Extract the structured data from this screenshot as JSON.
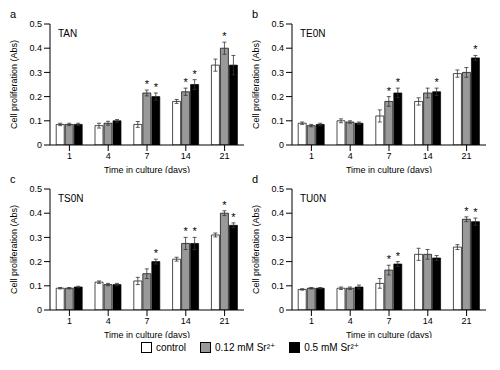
{
  "chart_data": [
    {
      "type": "bar",
      "panel_label": "a",
      "title": "TAN",
      "x_label": "Time in culture (days)",
      "y_label": "Cell proliferation (Abs)",
      "categories": [
        "1",
        "4",
        "7",
        "14",
        "21"
      ],
      "ylim": [
        0,
        0.5
      ],
      "yticks": [
        0,
        0.1,
        0.2,
        0.3,
        0.4,
        0.5
      ],
      "legend": "bottom",
      "series": [
        {
          "name": "control",
          "color": "#ffffff",
          "values": [
            0.085,
            0.08,
            0.085,
            0.18,
            0.33
          ],
          "errors": [
            0.005,
            0.01,
            0.012,
            0.008,
            0.025
          ],
          "significance": [
            null,
            null,
            null,
            null,
            null
          ]
        },
        {
          "name": "0.12 mM Sr²⁺",
          "color": "#999999",
          "values": [
            0.085,
            0.09,
            0.215,
            0.22,
            0.4
          ],
          "errors": [
            0.005,
            0.008,
            0.012,
            0.015,
            0.025
          ],
          "significance": [
            null,
            null,
            "*",
            "*",
            "*"
          ]
        },
        {
          "name": "0.5 mM Sr²⁺",
          "color": "#000000",
          "values": [
            0.085,
            0.1,
            0.2,
            0.25,
            0.33
          ],
          "errors": [
            0.005,
            0.005,
            0.015,
            0.02,
            0.04
          ],
          "significance": [
            null,
            null,
            "*",
            "*",
            null
          ]
        }
      ]
    },
    {
      "type": "bar",
      "panel_label": "b",
      "title": "TE0N",
      "x_label": "Time in culture (days)",
      "y_label": "Cell proliferation (Abs)",
      "categories": [
        "1",
        "4",
        "7",
        "14",
        "21"
      ],
      "ylim": [
        0,
        0.5
      ],
      "yticks": [
        0,
        0.1,
        0.2,
        0.3,
        0.4,
        0.5
      ],
      "legend": "bottom",
      "series": [
        {
          "name": "control",
          "color": "#ffffff",
          "values": [
            0.09,
            0.1,
            0.12,
            0.18,
            0.295
          ],
          "errors": [
            0.005,
            0.008,
            0.025,
            0.015,
            0.015
          ],
          "significance": [
            null,
            null,
            null,
            null,
            null
          ]
        },
        {
          "name": "0.12 mM Sr²⁺",
          "color": "#999999",
          "values": [
            0.08,
            0.095,
            0.18,
            0.215,
            0.3
          ],
          "errors": [
            0.005,
            0.005,
            0.02,
            0.02,
            0.02
          ],
          "significance": [
            null,
            null,
            "*",
            null,
            null
          ]
        },
        {
          "name": "0.5 mM Sr²⁺",
          "color": "#000000",
          "values": [
            0.085,
            0.09,
            0.215,
            0.22,
            0.36
          ],
          "errors": [
            0.005,
            0.005,
            0.02,
            0.015,
            0.01
          ],
          "significance": [
            null,
            null,
            "*",
            "*",
            "*"
          ]
        }
      ]
    },
    {
      "type": "bar",
      "panel_label": "c",
      "title": "TS0N",
      "x_label": "Time in culture (days)",
      "y_label": "Cell proliferation (Abs)",
      "categories": [
        "1",
        "4",
        "7",
        "14",
        "21"
      ],
      "ylim": [
        0,
        0.5
      ],
      "yticks": [
        0,
        0.1,
        0.2,
        0.3,
        0.4,
        0.5
      ],
      "legend": "bottom",
      "series": [
        {
          "name": "control",
          "color": "#ffffff",
          "values": [
            0.09,
            0.115,
            0.12,
            0.21,
            0.31
          ],
          "errors": [
            0.003,
            0.005,
            0.015,
            0.008,
            0.008
          ],
          "significance": [
            null,
            null,
            null,
            null,
            null
          ]
        },
        {
          "name": "0.12 mM Sr²⁺",
          "color": "#999999",
          "values": [
            0.09,
            0.105,
            0.15,
            0.275,
            0.4
          ],
          "errors": [
            0.003,
            0.005,
            0.02,
            0.025,
            0.01
          ],
          "significance": [
            null,
            null,
            null,
            "*",
            "*"
          ]
        },
        {
          "name": "0.5 mM Sr²⁺",
          "color": "#000000",
          "values": [
            0.095,
            0.105,
            0.2,
            0.275,
            0.35
          ],
          "errors": [
            0.003,
            0.005,
            0.01,
            0.025,
            0.01
          ],
          "significance": [
            null,
            null,
            "*",
            "*",
            "*"
          ]
        }
      ]
    },
    {
      "type": "bar",
      "panel_label": "d",
      "title": "TU0N",
      "x_label": "Time in culture (days)",
      "y_label": "Cell proliferation (Abs)",
      "categories": [
        "1",
        "4",
        "7",
        "14",
        "21"
      ],
      "ylim": [
        0,
        0.5
      ],
      "yticks": [
        0,
        0.1,
        0.2,
        0.3,
        0.4,
        0.5
      ],
      "legend": "bottom",
      "series": [
        {
          "name": "control",
          "color": "#ffffff",
          "values": [
            0.085,
            0.09,
            0.11,
            0.23,
            0.26
          ],
          "errors": [
            0.003,
            0.005,
            0.02,
            0.025,
            0.01
          ],
          "significance": [
            null,
            null,
            null,
            null,
            null
          ]
        },
        {
          "name": "0.12 mM Sr²⁺",
          "color": "#999999",
          "values": [
            0.09,
            0.09,
            0.165,
            0.23,
            0.375
          ],
          "errors": [
            0.003,
            0.005,
            0.02,
            0.02,
            0.01
          ],
          "significance": [
            null,
            null,
            "*",
            null,
            "*"
          ]
        },
        {
          "name": "0.5 mM Sr²⁺",
          "color": "#000000",
          "values": [
            0.09,
            0.095,
            0.19,
            0.215,
            0.365
          ],
          "errors": [
            0.003,
            0.008,
            0.01,
            0.01,
            0.015
          ],
          "significance": [
            null,
            null,
            "*",
            null,
            "*"
          ]
        }
      ]
    }
  ]
}
